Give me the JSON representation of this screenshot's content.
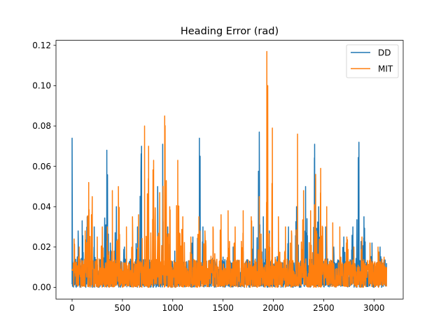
{
  "chart_data": {
    "type": "line",
    "title": "Heading Error (rad)",
    "xlabel": "",
    "ylabel": "",
    "xlim": [
      -160,
      3290
    ],
    "ylim": [
      -0.0058,
      0.1225
    ],
    "xticks": [
      0,
      500,
      1000,
      1500,
      2000,
      2500,
      3000
    ],
    "yticks": [
      0.0,
      0.02,
      0.04,
      0.06,
      0.08,
      0.1,
      0.12
    ],
    "xtick_labels": [
      "0",
      "500",
      "1000",
      "1500",
      "2000",
      "2500",
      "3000"
    ],
    "ytick_labels": [
      "0.00",
      "0.02",
      "0.04",
      "0.06",
      "0.08",
      "0.10",
      "0.12"
    ],
    "grid": false,
    "legend_position": "top-right",
    "x_range": [
      0,
      3125
    ],
    "series": [
      {
        "name": "DD",
        "color": "#1f77b4",
        "peaks": [
          {
            "x": 0,
            "y": 0.074
          },
          {
            "x": 60,
            "y": 0.028
          },
          {
            "x": 100,
            "y": 0.033
          },
          {
            "x": 150,
            "y": 0.035
          },
          {
            "x": 220,
            "y": 0.03
          },
          {
            "x": 290,
            "y": 0.02
          },
          {
            "x": 335,
            "y": 0.031
          },
          {
            "x": 345,
            "y": 0.068
          },
          {
            "x": 380,
            "y": 0.022
          },
          {
            "x": 440,
            "y": 0.04
          },
          {
            "x": 520,
            "y": 0.02
          },
          {
            "x": 600,
            "y": 0.028
          },
          {
            "x": 650,
            "y": 0.03
          },
          {
            "x": 690,
            "y": 0.07
          },
          {
            "x": 760,
            "y": 0.035
          },
          {
            "x": 850,
            "y": 0.05
          },
          {
            "x": 900,
            "y": 0.071
          },
          {
            "x": 950,
            "y": 0.03
          },
          {
            "x": 1020,
            "y": 0.018
          },
          {
            "x": 1100,
            "y": 0.015
          },
          {
            "x": 1200,
            "y": 0.025
          },
          {
            "x": 1265,
            "y": 0.074
          },
          {
            "x": 1300,
            "y": 0.03
          },
          {
            "x": 1400,
            "y": 0.018
          },
          {
            "x": 1500,
            "y": 0.015
          },
          {
            "x": 1600,
            "y": 0.02
          },
          {
            "x": 1700,
            "y": 0.018
          },
          {
            "x": 1800,
            "y": 0.03
          },
          {
            "x": 1860,
            "y": 0.077
          },
          {
            "x": 1900,
            "y": 0.035
          },
          {
            "x": 1960,
            "y": 0.028
          },
          {
            "x": 2050,
            "y": 0.02
          },
          {
            "x": 2150,
            "y": 0.03
          },
          {
            "x": 2230,
            "y": 0.04
          },
          {
            "x": 2320,
            "y": 0.05
          },
          {
            "x": 2410,
            "y": 0.071
          },
          {
            "x": 2450,
            "y": 0.04
          },
          {
            "x": 2520,
            "y": 0.03
          },
          {
            "x": 2600,
            "y": 0.02
          },
          {
            "x": 2700,
            "y": 0.025
          },
          {
            "x": 2790,
            "y": 0.03
          },
          {
            "x": 2850,
            "y": 0.072
          },
          {
            "x": 2900,
            "y": 0.035
          },
          {
            "x": 2980,
            "y": 0.022
          },
          {
            "x": 3060,
            "y": 0.02
          },
          {
            "x": 3125,
            "y": 0.012
          }
        ]
      },
      {
        "name": "MIT",
        "color": "#ff7f0e",
        "peaks": [
          {
            "x": 20,
            "y": 0.024
          },
          {
            "x": 70,
            "y": 0.02
          },
          {
            "x": 130,
            "y": 0.028
          },
          {
            "x": 165,
            "y": 0.052
          },
          {
            "x": 200,
            "y": 0.045
          },
          {
            "x": 250,
            "y": 0.025
          },
          {
            "x": 300,
            "y": 0.03
          },
          {
            "x": 350,
            "y": 0.03
          },
          {
            "x": 400,
            "y": 0.048
          },
          {
            "x": 460,
            "y": 0.05
          },
          {
            "x": 540,
            "y": 0.03
          },
          {
            "x": 600,
            "y": 0.035
          },
          {
            "x": 660,
            "y": 0.036
          },
          {
            "x": 720,
            "y": 0.08
          },
          {
            "x": 760,
            "y": 0.07
          },
          {
            "x": 810,
            "y": 0.063
          },
          {
            "x": 870,
            "y": 0.047
          },
          {
            "x": 920,
            "y": 0.085
          },
          {
            "x": 970,
            "y": 0.04
          },
          {
            "x": 1050,
            "y": 0.063
          },
          {
            "x": 1100,
            "y": 0.035
          },
          {
            "x": 1180,
            "y": 0.025
          },
          {
            "x": 1260,
            "y": 0.035
          },
          {
            "x": 1320,
            "y": 0.028
          },
          {
            "x": 1400,
            "y": 0.03
          },
          {
            "x": 1480,
            "y": 0.036
          },
          {
            "x": 1550,
            "y": 0.038
          },
          {
            "x": 1620,
            "y": 0.03
          },
          {
            "x": 1700,
            "y": 0.038
          },
          {
            "x": 1780,
            "y": 0.035
          },
          {
            "x": 1860,
            "y": 0.045
          },
          {
            "x": 1935,
            "y": 0.117
          },
          {
            "x": 1990,
            "y": 0.079
          },
          {
            "x": 2050,
            "y": 0.035
          },
          {
            "x": 2120,
            "y": 0.03
          },
          {
            "x": 2180,
            "y": 0.028
          },
          {
            "x": 2240,
            "y": 0.076
          },
          {
            "x": 2300,
            "y": 0.048
          },
          {
            "x": 2370,
            "y": 0.038
          },
          {
            "x": 2420,
            "y": 0.056
          },
          {
            "x": 2470,
            "y": 0.059
          },
          {
            "x": 2530,
            "y": 0.04
          },
          {
            "x": 2590,
            "y": 0.032
          },
          {
            "x": 2660,
            "y": 0.03
          },
          {
            "x": 2730,
            "y": 0.025
          },
          {
            "x": 2800,
            "y": 0.02
          },
          {
            "x": 2880,
            "y": 0.025
          },
          {
            "x": 2960,
            "y": 0.022
          },
          {
            "x": 3040,
            "y": 0.02
          },
          {
            "x": 3100,
            "y": 0.015
          },
          {
            "x": 3125,
            "y": 0.01
          }
        ]
      }
    ]
  }
}
